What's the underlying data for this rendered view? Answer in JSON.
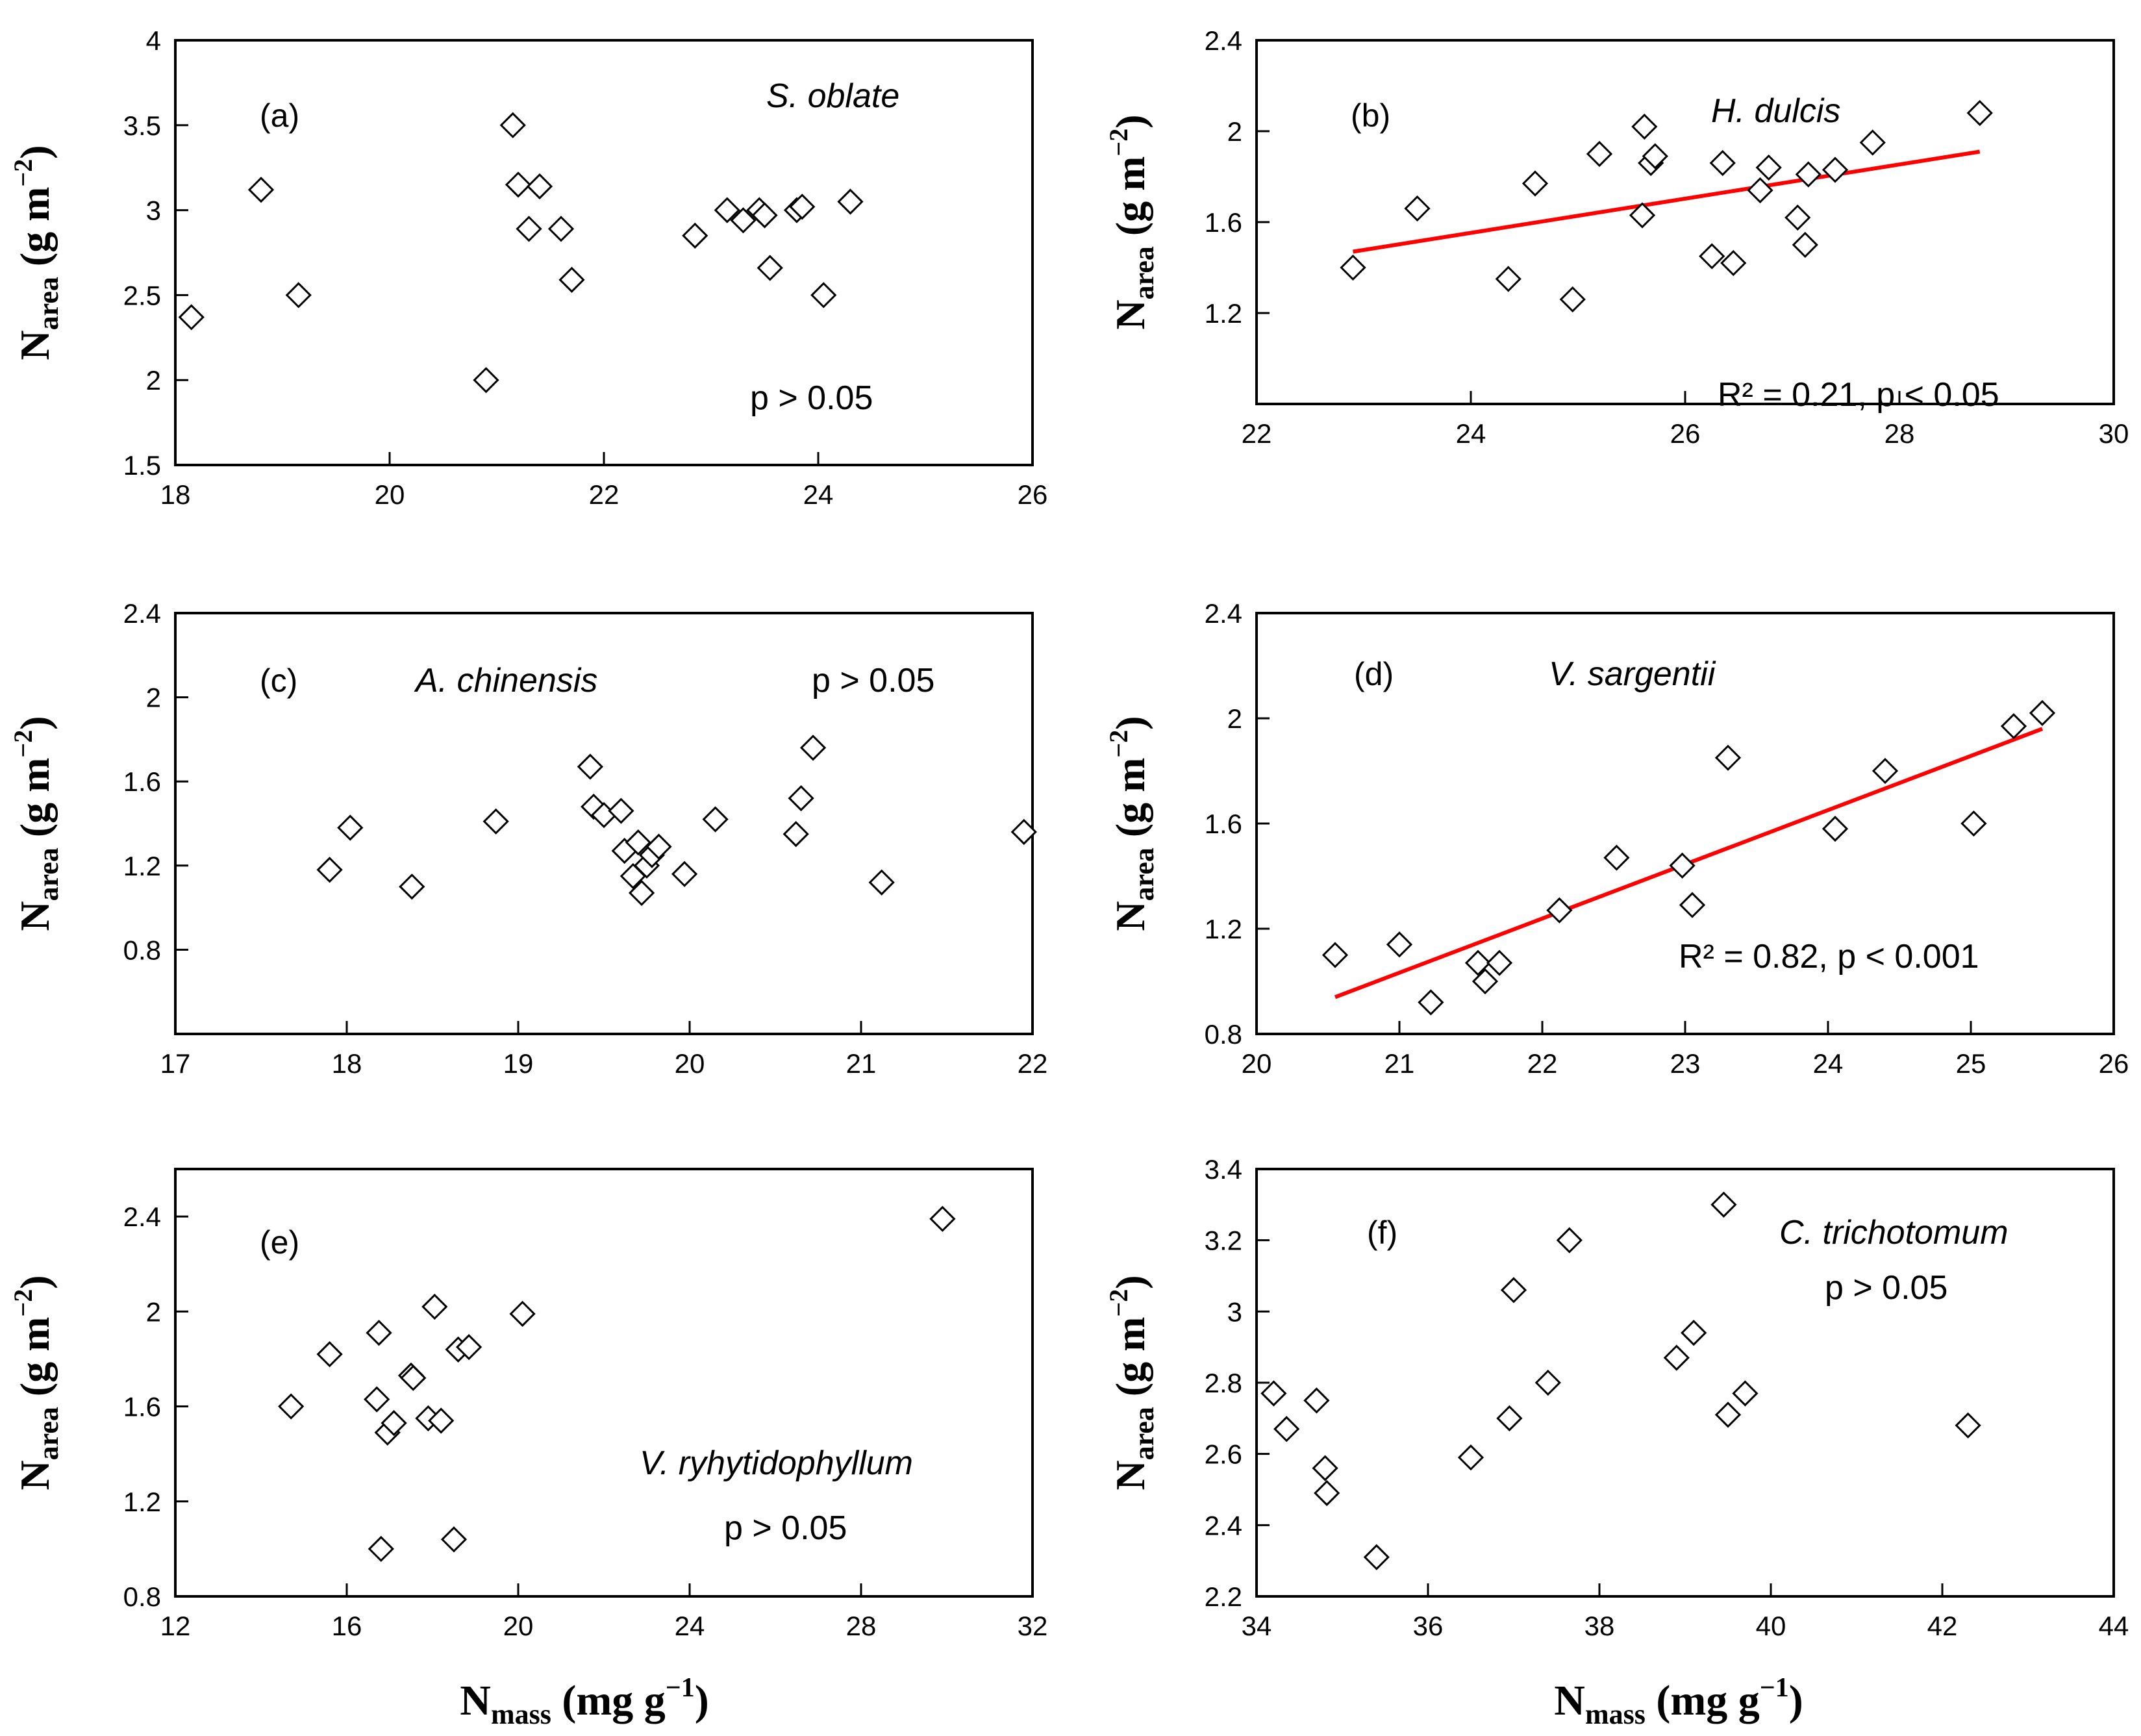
{
  "figure": {
    "y_axis_label": {
      "main": "N",
      "sub": "area",
      "units_pre": " (g m",
      "sup": "−2",
      "units_post": ")"
    },
    "x_axis_label": {
      "main": "N",
      "sub": "mass",
      "units_pre": " (mg g",
      "sup": "−1",
      "units_post": ")"
    }
  },
  "chart_data": [
    {
      "id": "a",
      "type": "scatter",
      "panel_label": "(a)",
      "species": "S. oblate",
      "annotation": "p > 0.05",
      "xlim": [
        18,
        26
      ],
      "xticks": [
        18,
        20,
        22,
        24,
        26
      ],
      "xtick_labels": [
        "18",
        "20",
        "22",
        "24",
        "26"
      ],
      "ylim": [
        1.5,
        4
      ],
      "yticks": [
        1.5,
        2,
        2.5,
        3,
        3.5,
        4
      ],
      "ytick_labels": [
        "1.5",
        "2",
        "2.5",
        "3",
        "3.5",
        "4"
      ],
      "x": [
        18.15,
        18.8,
        19.15,
        20.9,
        21.15,
        21.2,
        21.3,
        21.4,
        21.6,
        21.7,
        22.85,
        23.15,
        23.3,
        23.45,
        23.5,
        23.55,
        23.8,
        23.85,
        24.05,
        24.3
      ],
      "y": [
        2.37,
        3.12,
        2.5,
        2.0,
        3.5,
        3.15,
        2.89,
        3.14,
        2.89,
        2.59,
        2.85,
        3.0,
        2.94,
        3.0,
        2.97,
        2.66,
        3.0,
        3.02,
        2.5,
        3.05
      ],
      "trendline": null
    },
    {
      "id": "b",
      "type": "scatter",
      "panel_label": "(b)",
      "species": "H. dulcis",
      "annotation": "R² = 0.21,  p < 0.05",
      "xlim": [
        22,
        30
      ],
      "xticks": [
        22,
        24,
        26,
        28,
        30
      ],
      "xtick_labels": [
        "22",
        "24",
        "26",
        "28",
        "30"
      ],
      "ylim": [
        0.8,
        2.4
      ],
      "yticks": [
        1.2,
        1.6,
        2,
        2.4
      ],
      "ytick_labels": [
        "1.2",
        "1.6",
        "2",
        "2.4"
      ],
      "x": [
        22.9,
        23.5,
        24.35,
        24.6,
        24.95,
        25.2,
        25.6,
        25.62,
        25.68,
        25.72,
        26.25,
        26.35,
        26.45,
        26.7,
        26.78,
        27.05,
        27.12,
        27.15,
        27.4,
        27.75,
        28.75
      ],
      "y": [
        1.4,
        1.66,
        1.35,
        1.77,
        1.26,
        1.9,
        1.63,
        2.02,
        1.86,
        1.89,
        1.45,
        1.86,
        1.42,
        1.74,
        1.84,
        1.62,
        1.5,
        1.81,
        1.83,
        1.95,
        2.08
      ],
      "trendline": {
        "x": [
          22.9,
          28.75
        ],
        "y": [
          1.47,
          1.91
        ],
        "color": "#ff0000"
      }
    },
    {
      "id": "c",
      "type": "scatter",
      "panel_label": "(c)",
      "species": "A. chinensis",
      "annotation": "p > 0.05",
      "xlim": [
        17,
        22
      ],
      "xticks": [
        17,
        18,
        19,
        20,
        21,
        22
      ],
      "xtick_labels": [
        "17",
        "18",
        "19",
        "20",
        "21",
        "22"
      ],
      "ylim": [
        0.4,
        2.4
      ],
      "yticks": [
        0.8,
        1.2,
        1.6,
        2,
        2.4
      ],
      "ytick_labels": [
        "0.8",
        "1.2",
        "1.6",
        "2",
        "2.4"
      ],
      "x": [
        17.9,
        18.02,
        18.38,
        18.87,
        19.42,
        19.44,
        19.5,
        19.6,
        19.62,
        19.67,
        19.7,
        19.72,
        19.75,
        19.78,
        19.82,
        19.97,
        20.15,
        20.62,
        20.65,
        20.72,
        21.12,
        21.95
      ],
      "y": [
        1.18,
        1.38,
        1.1,
        1.41,
        1.67,
        1.48,
        1.44,
        1.46,
        1.27,
        1.15,
        1.31,
        1.07,
        1.2,
        1.25,
        1.29,
        1.16,
        1.42,
        1.35,
        1.52,
        1.76,
        1.12,
        1.36
      ],
      "trendline": null
    },
    {
      "id": "d",
      "type": "scatter",
      "panel_label": "(d)",
      "species": "V. sargentii",
      "annotation": "R² = 0.82, p < 0.001",
      "xlim": [
        20,
        26
      ],
      "xticks": [
        20,
        21,
        22,
        23,
        24,
        25,
        26
      ],
      "xtick_labels": [
        "20",
        "21",
        "22",
        "23",
        "24",
        "25",
        "26"
      ],
      "ylim": [
        0.8,
        2.4
      ],
      "yticks": [
        0.8,
        1.2,
        1.6,
        2,
        2.4
      ],
      "ytick_labels": [
        "0.8",
        "1.2",
        "1.6",
        "2",
        "2.4"
      ],
      "x": [
        20.55,
        21.0,
        21.22,
        21.55,
        21.6,
        21.7,
        22.12,
        22.52,
        22.98,
        23.05,
        23.3,
        24.05,
        24.4,
        25.02,
        25.3,
        25.5
      ],
      "y": [
        1.1,
        1.14,
        0.92,
        1.07,
        1.0,
        1.07,
        1.27,
        1.47,
        1.44,
        1.29,
        1.85,
        1.58,
        1.8,
        1.6,
        1.97,
        2.02
      ],
      "trendline": {
        "x": [
          20.55,
          25.5
        ],
        "y": [
          0.94,
          1.96
        ],
        "color": "#ff0000"
      }
    },
    {
      "id": "e",
      "type": "scatter",
      "panel_label": "(e)",
      "species": "V. ryhytidophyllum",
      "annotation": "p > 0.05",
      "xlim": [
        12,
        32
      ],
      "xticks": [
        12,
        16,
        20,
        24,
        28,
        32
      ],
      "xtick_labels": [
        "12",
        "16",
        "20",
        "24",
        "28",
        "32"
      ],
      "ylim": [
        0.8,
        2.6
      ],
      "yticks": [
        0.8,
        1.2,
        1.6,
        2,
        2.4
      ],
      "ytick_labels": [
        "0.8",
        "1.2",
        "1.6",
        "2",
        "2.4"
      ],
      "x": [
        14.7,
        15.6,
        16.7,
        16.75,
        16.8,
        16.95,
        17.1,
        17.5,
        17.55,
        17.9,
        18.05,
        18.2,
        18.5,
        18.6,
        18.85,
        20.1,
        29.9
      ],
      "y": [
        1.6,
        1.82,
        1.63,
        1.91,
        1.0,
        1.49,
        1.53,
        1.73,
        1.72,
        1.55,
        2.02,
        1.54,
        1.04,
        1.84,
        1.85,
        1.99,
        2.39
      ],
      "trendline": null
    },
    {
      "id": "f",
      "type": "scatter",
      "panel_label": "(f)",
      "species": "C. trichotomum",
      "annotation": "p > 0.05",
      "xlim": [
        34,
        44
      ],
      "xticks": [
        34,
        36,
        38,
        40,
        42,
        44
      ],
      "xtick_labels": [
        "34",
        "36",
        "38",
        "40",
        "42",
        "44"
      ],
      "ylim": [
        2.2,
        3.4
      ],
      "yticks": [
        2.2,
        2.4,
        2.6,
        2.8,
        3,
        3.2,
        3.4
      ],
      "ytick_labels": [
        "2.2",
        "2.4",
        "2.6",
        "2.8",
        "3",
        "3.2",
        "3.4"
      ],
      "x": [
        34.2,
        34.35,
        34.7,
        34.8,
        34.82,
        35.4,
        36.5,
        36.95,
        37.0,
        37.4,
        37.65,
        38.9,
        39.1,
        39.45,
        39.5,
        39.7,
        42.3
      ],
      "y": [
        2.77,
        2.67,
        2.75,
        2.56,
        2.49,
        2.31,
        2.59,
        2.7,
        3.06,
        2.8,
        3.2,
        2.87,
        2.94,
        3.3,
        2.71,
        2.77,
        2.68
      ],
      "trendline": null
    }
  ]
}
